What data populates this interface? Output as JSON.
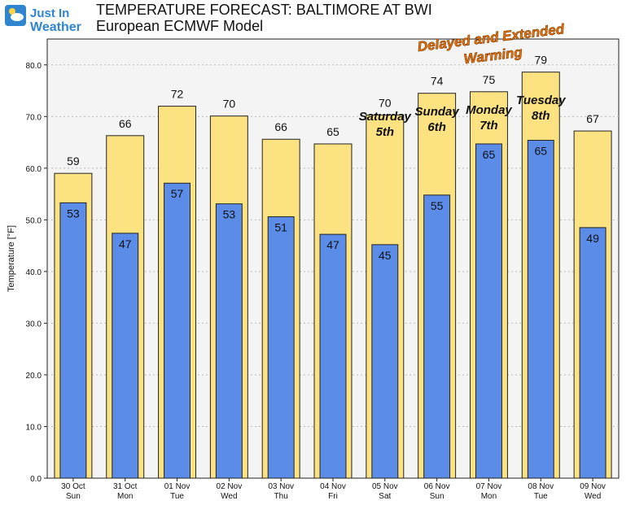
{
  "brand": {
    "line1": "Just In",
    "line2": "Weather"
  },
  "header": {
    "title": "TEMPERATURE FORECAST: BALTIMORE AT BWI",
    "subtitle": "European ECMWF Model"
  },
  "colors": {
    "high": "#fde282",
    "low": "#5b8de8",
    "annotation": "#e8720c",
    "brand_blue": "#2f86cf"
  },
  "chart_data": {
    "type": "bar",
    "ylabel": "Temperature [°F]",
    "ylim": [
      0,
      85
    ],
    "yticks": [
      "0.0",
      "10.0",
      "20.0",
      "30.0",
      "40.0",
      "50.0",
      "60.0",
      "70.0",
      "80.0"
    ],
    "grid": true,
    "categories": [
      [
        "30 Oct",
        "Sun"
      ],
      [
        "31 Oct",
        "Mon"
      ],
      [
        "01 Nov",
        "Tue"
      ],
      [
        "02 Nov",
        "Wed"
      ],
      [
        "03 Nov",
        "Thu"
      ],
      [
        "04 Nov",
        "Fri"
      ],
      [
        "05 Nov",
        "Sat"
      ],
      [
        "06 Nov",
        "Sun"
      ],
      [
        "07 Nov",
        "Mon"
      ],
      [
        "08 Nov",
        "Tue"
      ],
      [
        "09 Nov",
        "Wed"
      ]
    ],
    "series": [
      {
        "values": [
          59,
          66.3,
          72,
          70.1,
          65.6,
          64.7,
          70.3,
          74.5,
          74.8,
          78.6,
          67.2
        ],
        "labels": [
          "59",
          "66",
          "72",
          "70",
          "66",
          "65",
          "70",
          "74",
          "75",
          "79",
          "67"
        ]
      },
      {
        "values": [
          53.3,
          47.4,
          57.1,
          53.1,
          50.6,
          47.2,
          45.2,
          54.8,
          64.7,
          65.4,
          48.5
        ],
        "labels": [
          "53",
          "47",
          "57",
          "53",
          "51",
          "47",
          "45",
          "55",
          "65",
          "65",
          "49"
        ]
      }
    ],
    "annotations": {
      "highlight": "Delayed and Extended\nWarming",
      "days": [
        {
          "index": 6,
          "text": "Saturday\n5th"
        },
        {
          "index": 7,
          "text": "Sunday\n6th"
        },
        {
          "index": 8,
          "text": "Monday\n7th"
        },
        {
          "index": 9,
          "text": "Tuesday\n8th"
        }
      ]
    }
  }
}
